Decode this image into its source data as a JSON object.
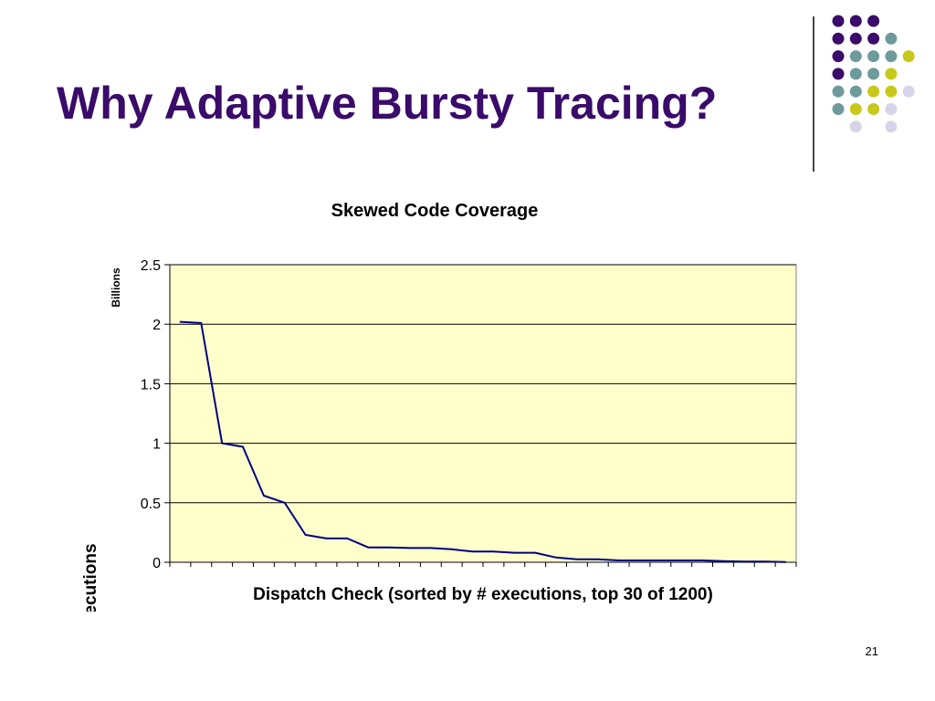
{
  "slide": {
    "title": "Why Adaptive Bursty Tracing?",
    "page_number": "21"
  },
  "decoration": {
    "dot_colors": [
      "#3a0b6a",
      "#6e9a9b",
      "#c8c81a",
      "#d5d4e8"
    ],
    "dot_grid": [
      [
        0,
        0,
        0,
        -1
      ],
      [
        0,
        0,
        0,
        1,
        -1
      ],
      [
        0,
        1,
        1,
        1,
        2
      ],
      [
        0,
        1,
        1,
        2,
        -1
      ],
      [
        1,
        1,
        2,
        2,
        3
      ],
      [
        1,
        2,
        2,
        3,
        -1
      ],
      [
        -1,
        3,
        -1,
        3,
        -1
      ]
    ]
  },
  "chart_data": {
    "type": "line",
    "title": "Skewed Code Coverage",
    "xlabel": "Dispatch Check (sorted by # executions, top 30 of 1200)",
    "ylabel": "# executions",
    "unit_label": "Billions",
    "ylim": [
      0,
      2.5
    ],
    "yticks": [
      0,
      0.5,
      1,
      1.5,
      2,
      2.5
    ],
    "ytick_labels": [
      "0",
      "0.5",
      "1",
      "1.5",
      "2",
      "2.5"
    ],
    "x_count": 30,
    "grid": true,
    "plot_background": "#ffffcc",
    "line_color": "#000080",
    "values": [
      2.02,
      2.01,
      1.0,
      0.97,
      0.56,
      0.5,
      0.23,
      0.2,
      0.2,
      0.125,
      0.125,
      0.12,
      0.12,
      0.11,
      0.09,
      0.09,
      0.08,
      0.08,
      0.04,
      0.025,
      0.025,
      0.015,
      0.015,
      0.015,
      0.015,
      0.015,
      0.01,
      0.005,
      0.005,
      0.002
    ]
  }
}
